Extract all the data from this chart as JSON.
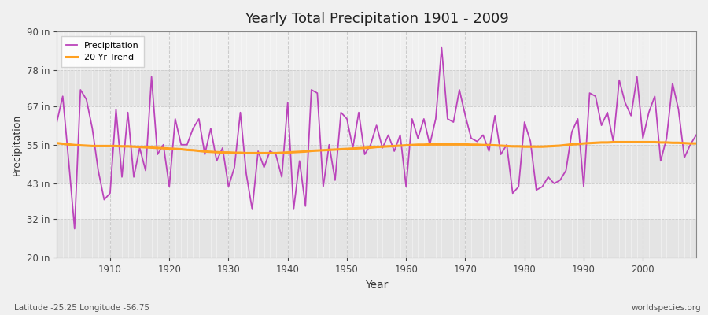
{
  "title": "Yearly Total Precipitation 1901 - 2009",
  "xlabel": "Year",
  "ylabel": "Precipitation",
  "xlim": [
    1901,
    2009
  ],
  "ylim": [
    20,
    90
  ],
  "yticks": [
    20,
    32,
    43,
    55,
    67,
    78,
    90
  ],
  "ytick_labels": [
    "20 in",
    "32 in",
    "43 in",
    "55 in",
    "67 in",
    "78 in",
    "90 in"
  ],
  "xticks": [
    1910,
    1920,
    1930,
    1940,
    1950,
    1960,
    1970,
    1980,
    1990,
    2000
  ],
  "background_color": "#f0f0f0",
  "plot_bg_color": "#f0f0f0",
  "band_color_light": "#f0f0f0",
  "band_color_dark": "#e4e4e4",
  "precip_color": "#bb44bb",
  "trend_color": "#ffa020",
  "legend_labels": [
    "Precipitation",
    "20 Yr Trend"
  ],
  "watermark": "worldspecies.org",
  "coord_label": "Latitude -25.25 Longitude -56.75",
  "years": [
    1901,
    1902,
    1903,
    1904,
    1905,
    1906,
    1907,
    1908,
    1909,
    1910,
    1911,
    1912,
    1913,
    1914,
    1915,
    1916,
    1917,
    1918,
    1919,
    1920,
    1921,
    1922,
    1923,
    1924,
    1925,
    1926,
    1927,
    1928,
    1929,
    1930,
    1931,
    1932,
    1933,
    1934,
    1935,
    1936,
    1937,
    1938,
    1939,
    1940,
    1941,
    1942,
    1943,
    1944,
    1945,
    1946,
    1947,
    1948,
    1949,
    1950,
    1951,
    1952,
    1953,
    1954,
    1955,
    1956,
    1957,
    1958,
    1959,
    1960,
    1961,
    1962,
    1963,
    1964,
    1965,
    1966,
    1967,
    1968,
    1969,
    1970,
    1971,
    1972,
    1973,
    1974,
    1975,
    1976,
    1977,
    1978,
    1979,
    1980,
    1981,
    1982,
    1983,
    1984,
    1985,
    1986,
    1987,
    1988,
    1989,
    1990,
    1991,
    1992,
    1993,
    1994,
    1995,
    1996,
    1997,
    1998,
    1999,
    2000,
    2001,
    2002,
    2003,
    2004,
    2005,
    2006,
    2007,
    2008,
    2009
  ],
  "precip": [
    62,
    70,
    50,
    29,
    72,
    69,
    60,
    47,
    38,
    40,
    66,
    45,
    65,
    45,
    54,
    47,
    76,
    52,
    55,
    42,
    63,
    55,
    55,
    60,
    63,
    52,
    60,
    50,
    54,
    42,
    48,
    65,
    46,
    35,
    53,
    48,
    53,
    52,
    45,
    68,
    35,
    50,
    36,
    72,
    71,
    42,
    55,
    44,
    65,
    63,
    54,
    65,
    52,
    55,
    61,
    54,
    58,
    53,
    58,
    42,
    63,
    57,
    63,
    55,
    63,
    85,
    63,
    62,
    72,
    64,
    57,
    56,
    58,
    53,
    64,
    52,
    55,
    40,
    42,
    62,
    56,
    41,
    42,
    45,
    43,
    44,
    47,
    59,
    63,
    42,
    71,
    70,
    61,
    65,
    56,
    75,
    68,
    64,
    76,
    57,
    65,
    70,
    50,
    57,
    74,
    66,
    51,
    55,
    58
  ],
  "trend": [
    55.5,
    55.3,
    55.1,
    54.9,
    54.8,
    54.7,
    54.6,
    54.6,
    54.6,
    54.6,
    54.6,
    54.5,
    54.5,
    54.4,
    54.3,
    54.2,
    54.1,
    54.0,
    53.9,
    53.8,
    53.7,
    53.6,
    53.4,
    53.3,
    53.1,
    52.9,
    52.8,
    52.7,
    52.6,
    52.6,
    52.5,
    52.5,
    52.4,
    52.4,
    52.4,
    52.4,
    52.4,
    52.4,
    52.5,
    52.6,
    52.7,
    52.8,
    52.9,
    53.1,
    53.2,
    53.3,
    53.4,
    53.5,
    53.6,
    53.7,
    53.8,
    53.9,
    54.0,
    54.1,
    54.3,
    54.4,
    54.5,
    54.6,
    54.7,
    54.8,
    54.9,
    55.0,
    55.0,
    55.1,
    55.1,
    55.1,
    55.1,
    55.1,
    55.1,
    55.1,
    55.0,
    55.0,
    54.9,
    54.9,
    54.8,
    54.7,
    54.6,
    54.5,
    54.5,
    54.4,
    54.4,
    54.4,
    54.4,
    54.5,
    54.6,
    54.7,
    54.9,
    55.1,
    55.2,
    55.4,
    55.5,
    55.6,
    55.7,
    55.7,
    55.8,
    55.8,
    55.8,
    55.8,
    55.8,
    55.8,
    55.8,
    55.8,
    55.7,
    55.7,
    55.6,
    55.6,
    55.5,
    55.4,
    55.4
  ]
}
